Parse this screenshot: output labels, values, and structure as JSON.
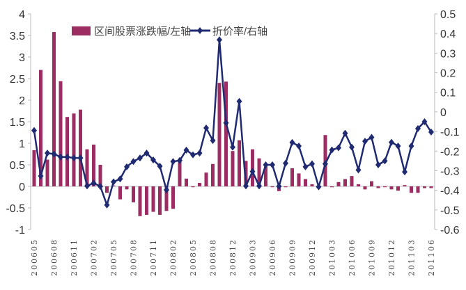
{
  "chart_data": {
    "type": "bar+line",
    "title": "",
    "colors": {
      "bar": "#9b2d62",
      "line": "#1f2a70",
      "axis": "#bbbbbb"
    },
    "legend": {
      "placement": "top",
      "entries": [
        "区间股票涨跌幅/左轴",
        "折价率/右轴"
      ]
    },
    "categories": [
      "200605",
      "200606",
      "200607",
      "200608",
      "200609",
      "200610",
      "200611",
      "200612",
      "200701",
      "200702",
      "200703",
      "200704",
      "200705",
      "200706",
      "200707",
      "200708",
      "200709",
      "200710",
      "200711",
      "200712",
      "200801",
      "200802",
      "200803",
      "200804",
      "200805",
      "200806",
      "200807",
      "200808",
      "200810",
      "200811",
      "200812",
      "200901",
      "200902",
      "200903",
      "200904",
      "200905",
      "200906",
      "200907",
      "200908",
      "200909",
      "200910",
      "200911",
      "200912",
      "201001",
      "201002",
      "201003",
      "201004",
      "201005",
      "201006",
      "201007",
      "201008",
      "201009",
      "201010",
      "201011",
      "201012",
      "201101",
      "201102",
      "201103",
      "201104",
      "201105",
      "201106"
    ],
    "x_tick_labels": [
      "200605",
      "200608",
      "200611",
      "200702",
      "200705",
      "200708",
      "200711",
      "200802",
      "200805",
      "200808",
      "200812",
      "200903",
      "200906",
      "200909",
      "200912",
      "201003",
      "201006",
      "201009",
      "201012",
      "201103",
      "201106"
    ],
    "left_axis": {
      "ylim": [
        -1,
        4
      ],
      "ticks": [
        "-1",
        "-0.5",
        "0",
        "0.5",
        "1",
        "1.5",
        "2",
        "2.5",
        "3",
        "3.5",
        "4"
      ]
    },
    "right_axis": {
      "ylim": [
        -0.6,
        0.5
      ],
      "ticks": [
        "-0.6",
        "-0.5",
        "-0.4",
        "-0.3",
        "-0.2",
        "-0.1",
        "0",
        "0.1",
        "0.2",
        "0.3",
        "0.4",
        "0.5"
      ]
    },
    "series": [
      {
        "name": "区间股票涨跌幅/左轴",
        "type": "bar",
        "axis": "left",
        "values": [
          0.84,
          2.7,
          0.62,
          3.58,
          2.44,
          1.61,
          1.69,
          1.78,
          0.86,
          0.97,
          0.5,
          -0.15,
          0.02,
          -0.3,
          -0.07,
          -0.37,
          -0.69,
          -0.66,
          -0.59,
          -0.66,
          -0.57,
          -0.52,
          0.58,
          0.18,
          -0.02,
          0.08,
          0.32,
          0.52,
          2.4,
          2.43,
          0.82,
          1.07,
          0.59,
          0.86,
          0.65,
          0.46,
          -0.02,
          -0.11,
          -0.02,
          0.42,
          0.3,
          0.17,
          0.05,
          -0.04,
          1.19,
          -0.02,
          0.1,
          0.17,
          0.24,
          0.05,
          -0.07,
          0.12,
          -0.04,
          -0.02,
          -0.07,
          -0.1,
          0.03,
          -0.15,
          -0.15,
          -0.04,
          -0.04
        ]
      },
      {
        "name": "折价率/右轴",
        "type": "line",
        "axis": "right",
        "values": [
          -0.095,
          -0.327,
          -0.21,
          -0.215,
          -0.23,
          -0.23,
          -0.235,
          -0.235,
          -0.378,
          -0.363,
          -0.38,
          -0.475,
          -0.357,
          -0.342,
          -0.28,
          -0.253,
          -0.235,
          -0.21,
          -0.245,
          -0.277,
          -0.398,
          -0.253,
          -0.248,
          -0.195,
          -0.219,
          -0.21,
          -0.082,
          -0.146,
          0.368,
          -0.056,
          -0.18,
          0.054,
          -0.378,
          -0.304,
          -0.378,
          -0.27,
          -0.27,
          -0.38,
          -0.262,
          -0.156,
          -0.174,
          -0.28,
          -0.265,
          -0.382,
          -0.265,
          -0.194,
          -0.183,
          -0.109,
          -0.18,
          -0.296,
          -0.15,
          -0.13,
          -0.27,
          -0.25,
          -0.155,
          -0.174,
          -0.306,
          -0.174,
          -0.085,
          -0.05,
          -0.103
        ]
      }
    ]
  }
}
